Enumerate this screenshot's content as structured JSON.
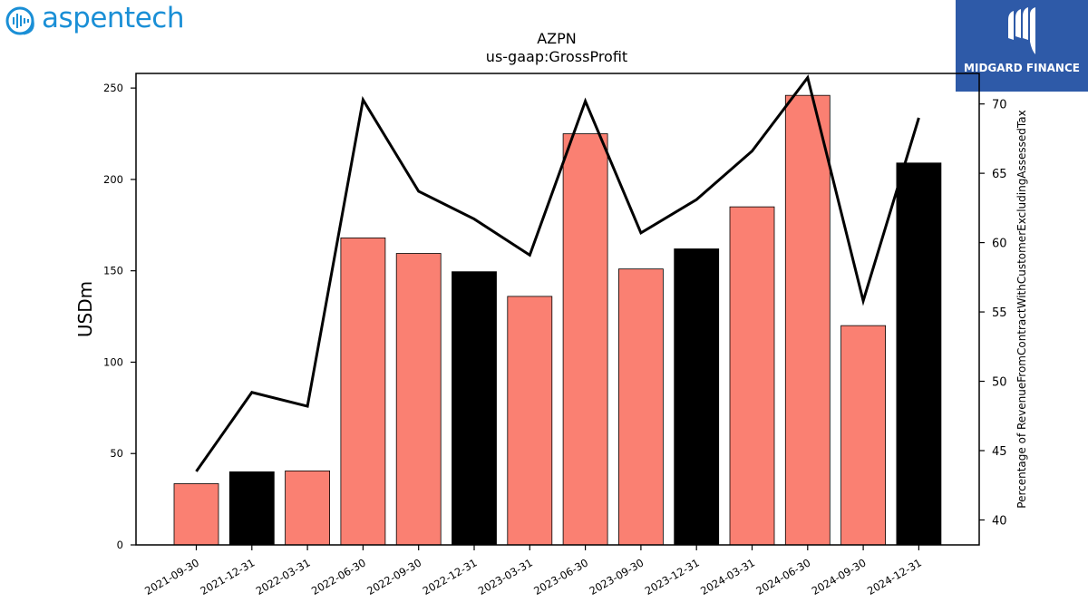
{
  "logos": {
    "left_brand": "aspentech",
    "right_brand": "MIDGARD FINANCE"
  },
  "chart_data": {
    "type": "bar",
    "title": "AZPN",
    "subtitle": "us-gaap:GrossProfit",
    "ylabel": "USDm",
    "y2label": "Percentage of RevenueFromContractWithCustomerExcludingAssessedTax",
    "ylim": [
      0,
      258
    ],
    "y2lim": [
      38.2,
      72.2
    ],
    "yticks": [
      0,
      50,
      100,
      150,
      200,
      250
    ],
    "y2ticks": [
      40,
      45,
      50,
      55,
      60,
      65,
      70
    ],
    "categories": [
      "2021-09-30",
      "2021-12-31",
      "2022-03-31",
      "2022-06-30",
      "2022-09-30",
      "2022-12-31",
      "2023-03-31",
      "2023-06-30",
      "2023-09-30",
      "2023-12-31",
      "2024-03-31",
      "2024-06-30",
      "2024-09-30",
      "2024-12-31"
    ],
    "series": [
      {
        "kind": "bar",
        "values": [
          33.5,
          40,
          40.5,
          168,
          159.5,
          149.5,
          136,
          225,
          151,
          162,
          185,
          246,
          120,
          209
        ],
        "colors": [
          "#fa8072",
          "#000000",
          "#fa8072",
          "#fa8072",
          "#fa8072",
          "#000000",
          "#fa8072",
          "#fa8072",
          "#fa8072",
          "#000000",
          "#fa8072",
          "#fa8072",
          "#fa8072",
          "#000000"
        ]
      },
      {
        "kind": "line",
        "axis": "right",
        "color": "#000000",
        "values": [
          43.5,
          49.2,
          48.2,
          70.3,
          63.7,
          61.7,
          59.1,
          70.2,
          60.7,
          63.1,
          66.6,
          71.9,
          55.8,
          69.0
        ]
      }
    ],
    "grid": false
  }
}
